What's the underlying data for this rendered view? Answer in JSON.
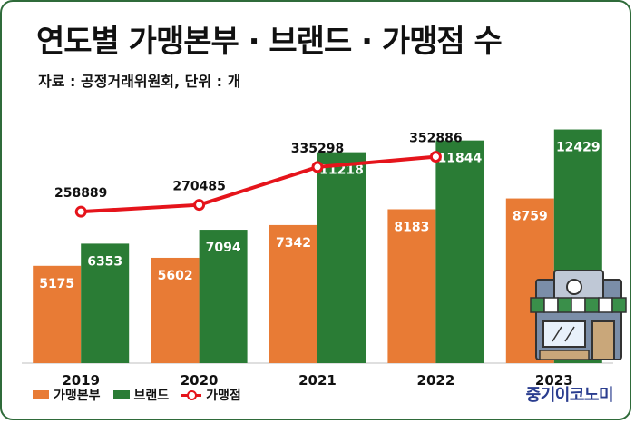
{
  "title": "연도별 가맹본부 · 브랜드 · 가맹점 수",
  "source": "자료 : 공정거래위원회, 단위 : 개",
  "brandmark": "중기이코노미",
  "colors": {
    "franchisor": "#e87b35",
    "brand": "#2a7c35",
    "store_line": "#e5141b"
  },
  "icons": [
    "storefront-icon"
  ],
  "legend": {
    "franchisor": "가맹본부",
    "brand": "브랜드",
    "store": "가맹점"
  },
  "chart_data": {
    "type": "bar",
    "categories": [
      "2019",
      "2020",
      "2021",
      "2022",
      "2023"
    ],
    "series": [
      {
        "name": "가맹본부",
        "type": "bar",
        "values": [
          5175,
          5602,
          7342,
          8183,
          8759
        ]
      },
      {
        "name": "브랜드",
        "type": "bar",
        "values": [
          6353,
          7094,
          11218,
          11844,
          12429
        ]
      },
      {
        "name": "가맹점",
        "type": "line",
        "values": [
          258889,
          270485,
          335298,
          352886,
          null
        ]
      }
    ],
    "bar_ylim": [
      0,
      14000
    ],
    "line_ylim": [
      0,
      450000
    ],
    "grid": false,
    "legend_position": "bottom-left"
  }
}
